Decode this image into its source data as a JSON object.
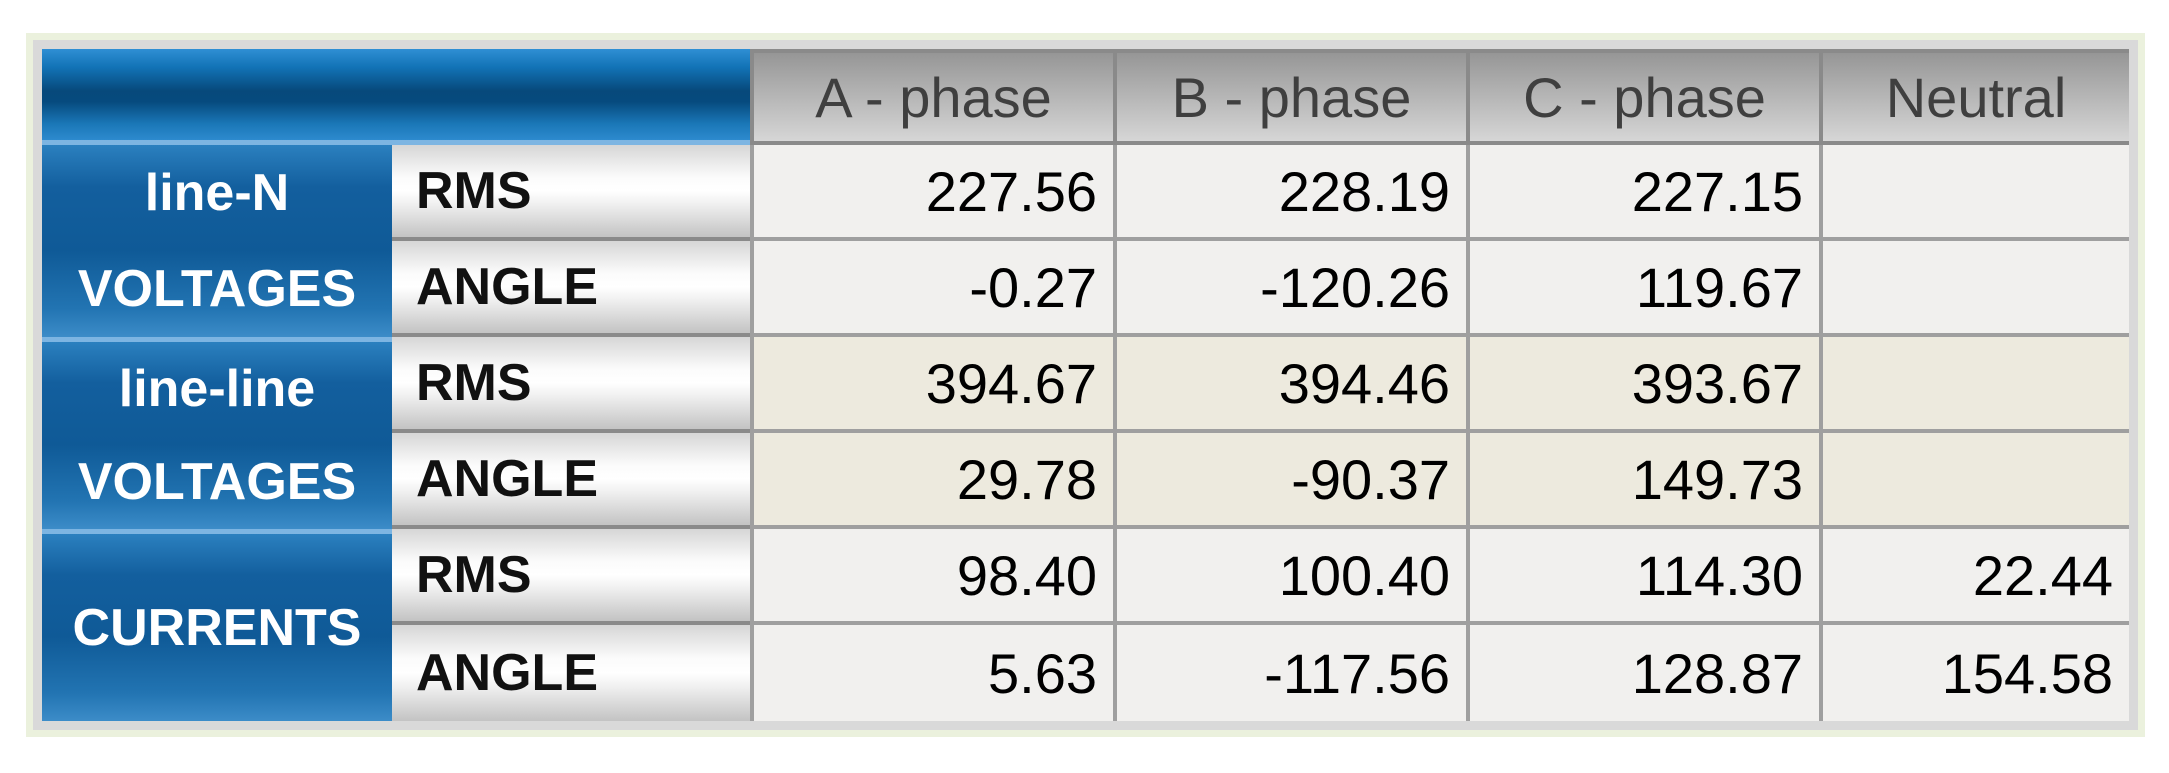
{
  "table": {
    "columns": [
      "A - phase",
      "B - phase",
      "C - phase",
      "Neutral"
    ],
    "groups": [
      {
        "labels": [
          "line-N",
          "VOLTAGES"
        ],
        "rows": [
          {
            "metric": "RMS",
            "values": [
              "227.56",
              "228.19",
              "227.15",
              ""
            ]
          },
          {
            "metric": "ANGLE",
            "values": [
              "-0.27",
              "-120.26",
              "119.67",
              ""
            ]
          }
        ]
      },
      {
        "labels": [
          "line-line",
          "VOLTAGES"
        ],
        "rows": [
          {
            "metric": "RMS",
            "values": [
              "394.67",
              "394.46",
              "393.67",
              ""
            ]
          },
          {
            "metric": "ANGLE",
            "values": [
              "29.78",
              "-90.37",
              "149.73",
              ""
            ]
          }
        ]
      },
      {
        "labels": [
          "CURRENTS"
        ],
        "rows": [
          {
            "metric": "RMS",
            "values": [
              "98.40",
              "100.40",
              "114.30",
              "22.44"
            ]
          },
          {
            "metric": "ANGLE",
            "values": [
              "5.63",
              "-117.56",
              "128.87",
              "154.58"
            ]
          }
        ]
      }
    ],
    "colors": {
      "header_blue_dark": "#07497b",
      "header_blue_light": "#2f8fd4",
      "group_blue": "#11619f",
      "group_separator_blue": "#7db5e2",
      "header_gray_top": "#969696",
      "header_gray_bottom": "#d6d6d6",
      "row_light": "#f1f0ee",
      "row_beige": "#edeade",
      "grid_border": "#9f9f9f",
      "frame_gray": "#d9d9d9",
      "frame_green": "#ebf1dd",
      "header_text": "#3f3f3f"
    }
  }
}
